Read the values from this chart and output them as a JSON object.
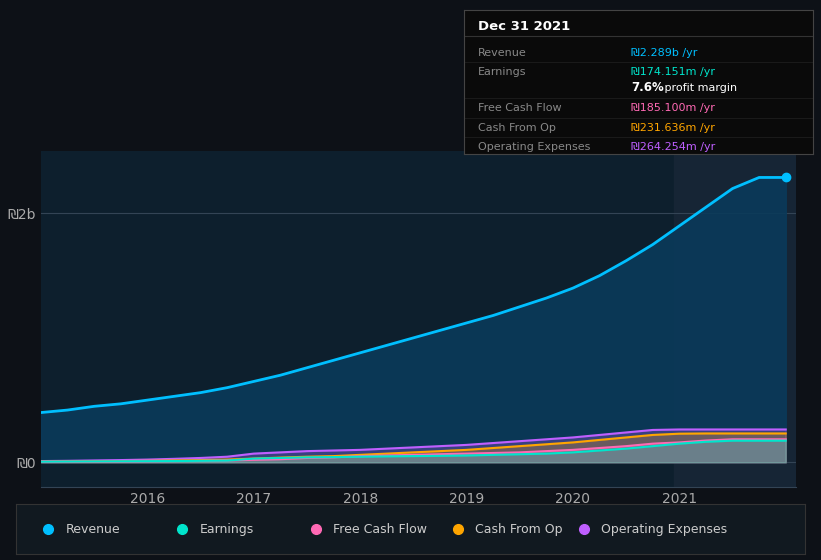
{
  "background_color": "#0d1117",
  "chart_bg": "#0d1f2d",
  "highlight_bg": "#162535",
  "box_bg": "#0a0a0a",
  "box_border": "#444444",
  "box_title": "Dec 31 2021",
  "x_years": [
    2015.0,
    2015.25,
    2015.5,
    2015.75,
    2016.0,
    2016.25,
    2016.5,
    2016.75,
    2017.0,
    2017.25,
    2017.5,
    2017.75,
    2018.0,
    2018.25,
    2018.5,
    2018.75,
    2019.0,
    2019.25,
    2019.5,
    2019.75,
    2020.0,
    2020.25,
    2020.5,
    2020.75,
    2021.0,
    2021.25,
    2021.5,
    2021.75,
    2022.0
  ],
  "revenue": [
    400,
    420,
    450,
    470,
    500,
    530,
    560,
    600,
    650,
    700,
    760,
    820,
    880,
    940,
    1000,
    1060,
    1120,
    1180,
    1250,
    1320,
    1400,
    1500,
    1620,
    1750,
    1900,
    2050,
    2200,
    2289,
    2289
  ],
  "earnings": [
    5,
    6,
    7,
    8,
    9,
    10,
    12,
    14,
    30,
    35,
    40,
    42,
    45,
    48,
    50,
    52,
    55,
    60,
    65,
    70,
    80,
    95,
    110,
    130,
    150,
    165,
    174,
    174,
    174
  ],
  "free_cash": [
    3,
    4,
    5,
    6,
    8,
    10,
    12,
    15,
    20,
    25,
    35,
    40,
    50,
    55,
    60,
    65,
    70,
    75,
    80,
    90,
    100,
    115,
    130,
    150,
    160,
    175,
    185,
    185,
    185
  ],
  "cash_from_op": [
    5,
    6,
    8,
    10,
    12,
    15,
    18,
    22,
    30,
    38,
    45,
    50,
    60,
    70,
    80,
    90,
    100,
    115,
    130,
    145,
    160,
    180,
    200,
    220,
    230,
    232,
    232,
    232,
    232
  ],
  "op_expenses": [
    10,
    12,
    15,
    18,
    22,
    28,
    35,
    45,
    70,
    80,
    90,
    95,
    100,
    110,
    120,
    130,
    140,
    155,
    170,
    185,
    200,
    220,
    240,
    260,
    264,
    264,
    264,
    264,
    264
  ],
  "revenue_color": "#00bfff",
  "revenue_fill": "#0a3a5a",
  "earnings_color": "#00e5cc",
  "free_cash_color": "#ff69b4",
  "cash_from_op_color": "#ffa500",
  "op_expenses_color": "#bf5fff",
  "highlight_x_start": 2020.95,
  "highlight_x_end": 2022.1,
  "ylim": [
    -200,
    2500
  ],
  "xlim": [
    2015.0,
    2022.1
  ],
  "yticks_labels": [
    "₪0",
    "₪2b"
  ],
  "yticks_values": [
    0,
    2000
  ],
  "xticks": [
    2016,
    2017,
    2018,
    2019,
    2020,
    2021
  ],
  "legend_items": [
    {
      "label": "Revenue",
      "color": "#00bfff"
    },
    {
      "label": "Earnings",
      "color": "#00e5cc"
    },
    {
      "label": "Free Cash Flow",
      "color": "#ff69b4"
    },
    {
      "label": "Cash From Op",
      "color": "#ffa500"
    },
    {
      "label": "Operating Expenses",
      "color": "#bf5fff"
    }
  ],
  "row_data": [
    {
      "label": "Revenue",
      "value": "₪2.289b /yr",
      "value_color": "#00bfff",
      "bold_part": ""
    },
    {
      "label": "Earnings",
      "value": "₪174.151m /yr",
      "value_color": "#00e5cc",
      "bold_part": ""
    },
    {
      "label": "",
      "value": "profit margin",
      "value_color": "#ffffff",
      "bold_part": "7.6%"
    },
    {
      "label": "Free Cash Flow",
      "value": "₪185.100m /yr",
      "value_color": "#ff69b4",
      "bold_part": ""
    },
    {
      "label": "Cash From Op",
      "value": "₪231.636m /yr",
      "value_color": "#ffa500",
      "bold_part": ""
    },
    {
      "label": "Operating Expenses",
      "value": "₪264.254m /yr",
      "value_color": "#bf5fff",
      "bold_part": ""
    }
  ]
}
